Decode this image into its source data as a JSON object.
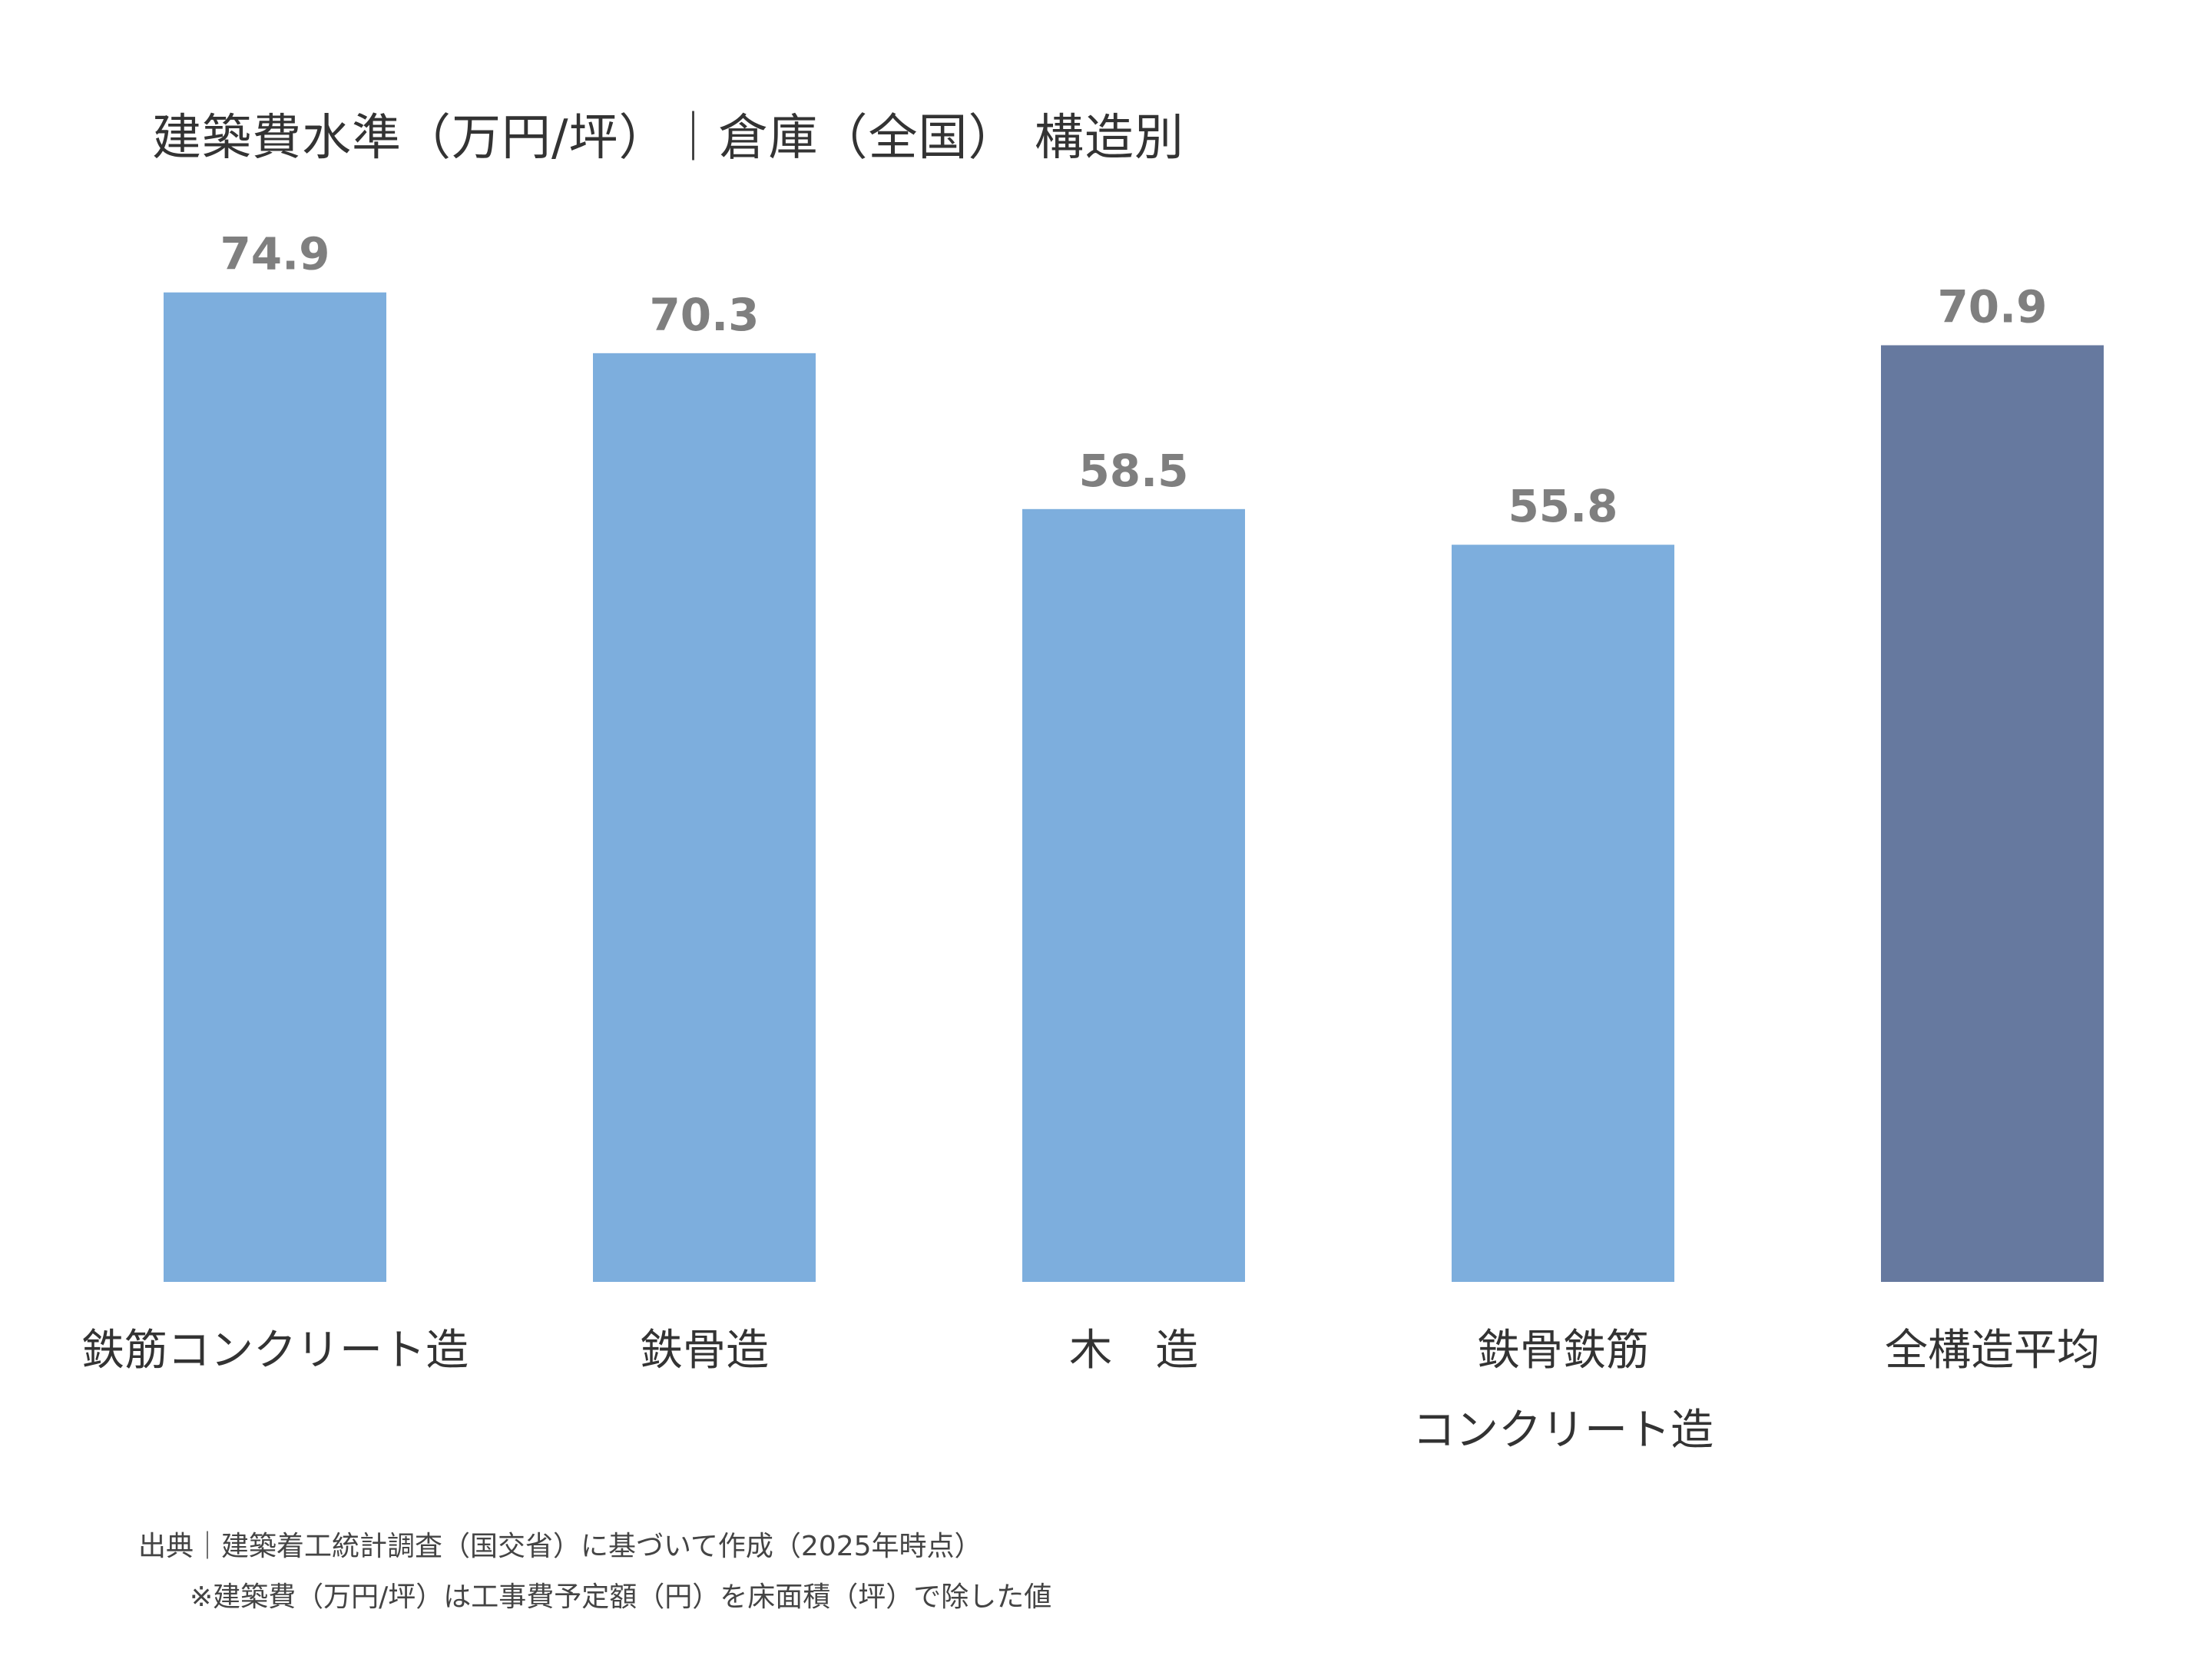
{
  "chart_data": {
    "type": "bar",
    "title": "建築費水準（万円/坪）｜倉庫（全国） 構造別",
    "categories": [
      [
        "鉄筋コンクリート造"
      ],
      [
        "鉄骨造"
      ],
      [
        "木　造"
      ],
      [
        "鉄骨鉄筋",
        "コンクリート造"
      ],
      [
        "全構造平均"
      ]
    ],
    "values": [
      74.9,
      70.3,
      58.5,
      55.8,
      70.9
    ],
    "data_labels": [
      "74.9",
      "70.3",
      "58.5",
      "55.8",
      "70.9"
    ],
    "colors": [
      "#7DAEDD",
      "#7DAEDD",
      "#7DAEDD",
      "#7DAEDD",
      "#66799F"
    ],
    "label_color": "#7F7F7F",
    "xlabel": "",
    "ylabel": "",
    "ylim": [
      0,
      80
    ],
    "grid": false,
    "y_axis_visible": false
  },
  "footer": {
    "source": "出典｜建築着工統計調査（国交省）に基づいて作成（2025年時点）",
    "note": "※建築費（万円/坪）は工事費予定額（円）を床面積（坪）で除した値"
  }
}
